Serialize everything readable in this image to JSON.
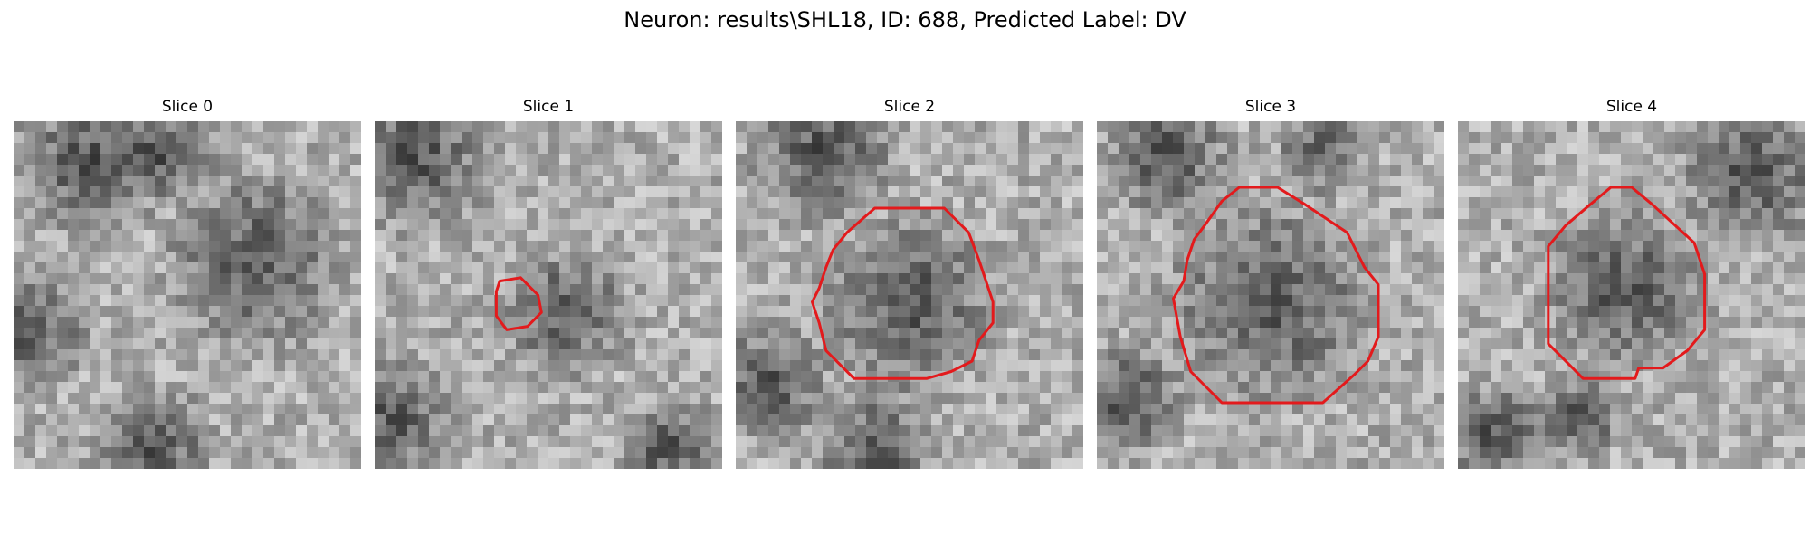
{
  "figure": {
    "title": "Neuron: results\\SHL18, ID: 688, Predicted Label: DV",
    "contour_color": "#e31a1c",
    "colormap": "grayscale",
    "grid_size": 32
  },
  "slices": [
    {
      "title": "Slice 0",
      "dark_regions": [
        [
          0.22,
          0.12,
          0.26
        ],
        [
          0.45,
          0.08,
          0.16
        ],
        [
          0.7,
          0.4,
          0.3
        ],
        [
          0.4,
          0.93,
          0.2
        ],
        [
          0.05,
          0.6,
          0.2
        ]
      ],
      "contour": []
    },
    {
      "title": "Slice 1",
      "dark_regions": [
        [
          0.12,
          0.1,
          0.26
        ],
        [
          0.05,
          0.85,
          0.2
        ],
        [
          0.55,
          0.55,
          0.22
        ],
        [
          0.85,
          0.95,
          0.18
        ]
      ],
      "contour": [
        [
          0.36,
          0.46
        ],
        [
          0.42,
          0.45
        ],
        [
          0.47,
          0.5
        ],
        [
          0.48,
          0.55
        ],
        [
          0.44,
          0.59
        ],
        [
          0.38,
          0.6
        ],
        [
          0.35,
          0.56
        ],
        [
          0.35,
          0.49
        ]
      ]
    },
    {
      "title": "Slice 2",
      "dark_regions": [
        [
          0.25,
          0.08,
          0.25
        ],
        [
          0.1,
          0.75,
          0.2
        ],
        [
          0.4,
          0.95,
          0.22
        ],
        [
          0.5,
          0.52,
          0.3
        ]
      ],
      "contour": [
        [
          0.4,
          0.25
        ],
        [
          0.6,
          0.25
        ],
        [
          0.67,
          0.32
        ],
        [
          0.7,
          0.4
        ],
        [
          0.72,
          0.46
        ],
        [
          0.74,
          0.52
        ],
        [
          0.74,
          0.58
        ],
        [
          0.7,
          0.63
        ],
        [
          0.68,
          0.69
        ],
        [
          0.62,
          0.72
        ],
        [
          0.55,
          0.74
        ],
        [
          0.34,
          0.74
        ],
        [
          0.26,
          0.66
        ],
        [
          0.24,
          0.58
        ],
        [
          0.22,
          0.52
        ],
        [
          0.24,
          0.48
        ],
        [
          0.26,
          0.42
        ],
        [
          0.28,
          0.37
        ],
        [
          0.32,
          0.32
        ]
      ]
    },
    {
      "title": "Slice 3",
      "dark_regions": [
        [
          0.2,
          0.1,
          0.22
        ],
        [
          0.08,
          0.8,
          0.2
        ],
        [
          0.5,
          0.52,
          0.35
        ],
        [
          0.65,
          0.08,
          0.15
        ]
      ],
      "contour": [
        [
          0.36,
          0.23
        ],
        [
          0.41,
          0.19
        ],
        [
          0.52,
          0.19
        ],
        [
          0.6,
          0.24
        ],
        [
          0.72,
          0.32
        ],
        [
          0.77,
          0.42
        ],
        [
          0.81,
          0.47
        ],
        [
          0.81,
          0.62
        ],
        [
          0.78,
          0.69
        ],
        [
          0.74,
          0.73
        ],
        [
          0.65,
          0.81
        ],
        [
          0.36,
          0.81
        ],
        [
          0.27,
          0.72
        ],
        [
          0.24,
          0.62
        ],
        [
          0.22,
          0.51
        ],
        [
          0.25,
          0.46
        ],
        [
          0.26,
          0.4
        ],
        [
          0.28,
          0.34
        ],
        [
          0.31,
          0.3
        ]
      ]
    },
    {
      "title": "Slice 4",
      "dark_regions": [
        [
          0.85,
          0.15,
          0.25
        ],
        [
          0.1,
          0.9,
          0.18
        ],
        [
          0.48,
          0.48,
          0.28
        ],
        [
          0.35,
          0.85,
          0.15
        ]
      ],
      "contour": [
        [
          0.38,
          0.24
        ],
        [
          0.44,
          0.19
        ],
        [
          0.5,
          0.19
        ],
        [
          0.56,
          0.24
        ],
        [
          0.68,
          0.35
        ],
        [
          0.71,
          0.44
        ],
        [
          0.71,
          0.6
        ],
        [
          0.66,
          0.66
        ],
        [
          0.59,
          0.71
        ],
        [
          0.52,
          0.71
        ],
        [
          0.51,
          0.74
        ],
        [
          0.36,
          0.74
        ],
        [
          0.32,
          0.7
        ],
        [
          0.26,
          0.64
        ],
        [
          0.26,
          0.36
        ],
        [
          0.31,
          0.3
        ]
      ]
    }
  ]
}
